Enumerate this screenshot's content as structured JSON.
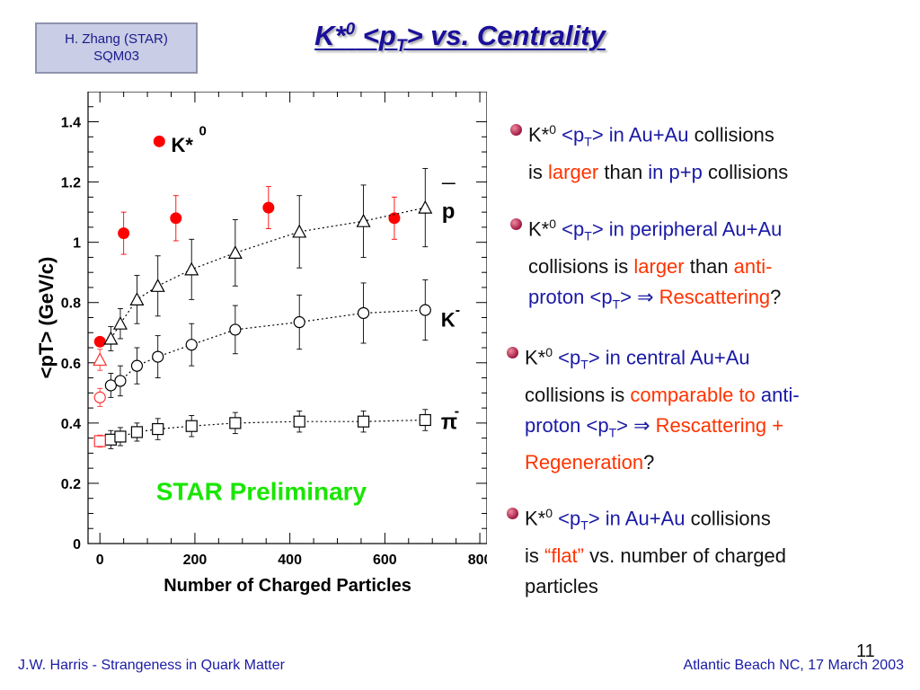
{
  "credit": {
    "line1": "H. Zhang (STAR)",
    "line2": "SQM03"
  },
  "title": {
    "prefix": "K*",
    "sup": "0",
    "mid": " <p",
    "sub": "T",
    "suffix": "> vs. Centrality"
  },
  "chart_data": {
    "type": "scatter",
    "xlabel": "Number of Charged Particles",
    "ylabel": "<pT> (GeV/c)",
    "xlim": [
      -25,
      815
    ],
    "ylim": [
      0,
      1.5
    ],
    "xticks": [
      0,
      200,
      400,
      600,
      800
    ],
    "yticks": [
      0,
      0.2,
      0.4,
      0.6,
      0.8,
      1,
      1.2,
      1.4
    ],
    "ytick_labels": [
      "0",
      "0.2",
      "0.4",
      "0.6",
      "0.8",
      "1",
      "1.2",
      "1.4"
    ],
    "watermark": "STAR Preliminary",
    "legend": {
      "label": "K*",
      "sup": "0",
      "position": "top-left"
    },
    "series": [
      {
        "name": "K*0",
        "marker": "filled-circle",
        "color": "#ff0000",
        "connected": false,
        "x": [
          0,
          50,
          160,
          355,
          620
        ],
        "y": [
          0.67,
          1.03,
          1.08,
          1.115,
          1.08
        ],
        "err": [
          0,
          0.07,
          0.075,
          0.07,
          0.07
        ]
      },
      {
        "name": "p̄",
        "label": "p",
        "overbar": true,
        "marker": "open-triangle",
        "color": "#000000",
        "connected": true,
        "x": [
          23,
          43,
          78,
          122,
          193,
          285,
          420,
          555,
          685
        ],
        "y": [
          0.68,
          0.73,
          0.81,
          0.855,
          0.91,
          0.965,
          1.035,
          1.07,
          1.115
        ],
        "err": [
          0.04,
          0.05,
          0.08,
          0.1,
          0.1,
          0.11,
          0.12,
          0.12,
          0.13
        ],
        "p_p": {
          "x": 0,
          "y": 0.61,
          "err": 0.035,
          "color": "#ff3333"
        }
      },
      {
        "name": "K-",
        "label": "K",
        "sup": "-",
        "marker": "open-circle",
        "color": "#000000",
        "connected": true,
        "x": [
          23,
          43,
          78,
          122,
          193,
          285,
          420,
          555,
          685
        ],
        "y": [
          0.525,
          0.54,
          0.59,
          0.62,
          0.66,
          0.71,
          0.735,
          0.765,
          0.775
        ],
        "err": [
          0.04,
          0.05,
          0.06,
          0.07,
          0.07,
          0.08,
          0.09,
          0.1,
          0.1
        ],
        "p_p": {
          "x": 0,
          "y": 0.485,
          "err": 0.03,
          "color": "#ff3333"
        }
      },
      {
        "name": "π-",
        "label": "π",
        "sup": "-",
        "marker": "open-square",
        "color": "#000000",
        "connected": true,
        "x": [
          23,
          43,
          78,
          122,
          193,
          285,
          420,
          555,
          685
        ],
        "y": [
          0.345,
          0.355,
          0.37,
          0.38,
          0.39,
          0.4,
          0.405,
          0.405,
          0.41
        ],
        "err": [
          0.03,
          0.03,
          0.03,
          0.035,
          0.035,
          0.035,
          0.035,
          0.035,
          0.035
        ],
        "p_p": {
          "x": 0,
          "y": 0.34,
          "err": 0.02,
          "color": "#ff3333"
        }
      }
    ]
  },
  "bullets": [
    {
      "parts": [
        [
          "K*",
          ""
        ],
        [
          "0",
          "sup"
        ],
        [
          " <p",
          "blue"
        ],
        [
          "T",
          "bluesub"
        ],
        [
          "> in Au+Au",
          "blue"
        ],
        [
          " collisions",
          ""
        ],
        [
          "\n",
          ""
        ],
        [
          "is ",
          ""
        ],
        [
          "larger",
          "red"
        ],
        [
          " than ",
          ""
        ],
        [
          "in p+p",
          "blue"
        ],
        [
          " collisions",
          ""
        ]
      ]
    },
    {
      "parts": [
        [
          "K*",
          ""
        ],
        [
          "0",
          "sup"
        ],
        [
          " <p",
          "blue"
        ],
        [
          "T",
          "bluesub"
        ],
        [
          "> in peripheral Au+Au",
          "blue"
        ],
        [
          "\n",
          ""
        ],
        [
          "collisions is ",
          ""
        ],
        [
          "larger",
          "red"
        ],
        [
          " than ",
          ""
        ],
        [
          "anti-",
          "red"
        ],
        [
          "\n",
          ""
        ],
        [
          "proton <p",
          "blue"
        ],
        [
          "T",
          "bluesub"
        ],
        [
          "> ⇒ ",
          "blue"
        ],
        [
          "Rescattering",
          "red"
        ],
        [
          "?",
          ""
        ]
      ]
    },
    {
      "parts": [
        [
          "K*",
          ""
        ],
        [
          "0",
          "sup"
        ],
        [
          " <p",
          "blue"
        ],
        [
          "T",
          "bluesub"
        ],
        [
          "> in central Au+Au",
          "blue"
        ],
        [
          "\n",
          ""
        ],
        [
          "collisions is ",
          ""
        ],
        [
          "comparable to",
          "red"
        ],
        [
          " ",
          ""
        ],
        [
          "anti-",
          "blue"
        ],
        [
          "\n",
          ""
        ],
        [
          "proton <p",
          "blue"
        ],
        [
          "T",
          "bluesub"
        ],
        [
          "> ⇒ ",
          "blue"
        ],
        [
          "Rescattering + ",
          "red"
        ],
        [
          "\n",
          ""
        ],
        [
          "Regeneration",
          "red"
        ],
        [
          "?",
          ""
        ]
      ]
    },
    {
      "parts": [
        [
          "K*",
          ""
        ],
        [
          "0",
          "sup"
        ],
        [
          " <p",
          "blue"
        ],
        [
          "T",
          "bluesub"
        ],
        [
          "> in Au+Au",
          "blue"
        ],
        [
          " collisions",
          ""
        ],
        [
          "\n",
          ""
        ],
        [
          "is ",
          ""
        ],
        [
          "“flat”",
          "red"
        ],
        [
          " vs. number of charged",
          ""
        ],
        [
          "\n",
          ""
        ],
        [
          "particles",
          ""
        ]
      ]
    }
  ],
  "footer": {
    "left": "J.W. Harris - Strangeness in Quark Matter",
    "right": "Atlantic Beach NC, 17 March 2003",
    "page": "11"
  },
  "colors": {
    "title": "#1a0f9a",
    "accent_blue": "#1a1aa6",
    "accent_red": "#ff3300",
    "watermark": "#19e600",
    "credit_bg": "#c9cde6"
  }
}
